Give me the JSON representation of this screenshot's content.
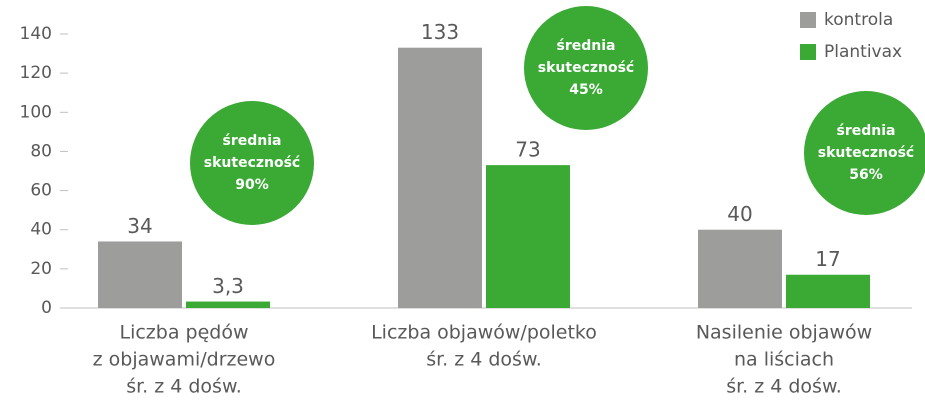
{
  "chart_data": {
    "type": "bar",
    "categories": [
      [
        "Liczba pędów",
        "z objawami/drzewo",
        "śr. z 4 dośw."
      ],
      [
        "Liczba objawów/poletko",
        "śr. z 4 dośw."
      ],
      [
        "Nasilenie objawów",
        "na liściach",
        "śr. z 4 dośw."
      ]
    ],
    "series": [
      {
        "name": "kontrola",
        "color": "#9d9d9c",
        "values": [
          34,
          133,
          40
        ]
      },
      {
        "name": "Plantivax",
        "color": "#3aaa35",
        "values": [
          3.3,
          73,
          17
        ],
        "value_labels": [
          "3,3",
          "73",
          "17"
        ]
      }
    ],
    "annotations": [
      {
        "text": [
          "średnia",
          "skuteczność",
          "90%"
        ],
        "color": "#3aaa35"
      },
      {
        "text": [
          "średnia",
          "skuteczność",
          "45%"
        ],
        "color": "#3aaa35"
      },
      {
        "text": [
          "średnia",
          "skuteczność",
          "56%"
        ],
        "color": "#3aaa35"
      }
    ],
    "ylim": [
      0,
      140
    ],
    "yticks": [
      0,
      20,
      40,
      60,
      80,
      100,
      120,
      140
    ],
    "grid": false,
    "legend": "top-right"
  }
}
